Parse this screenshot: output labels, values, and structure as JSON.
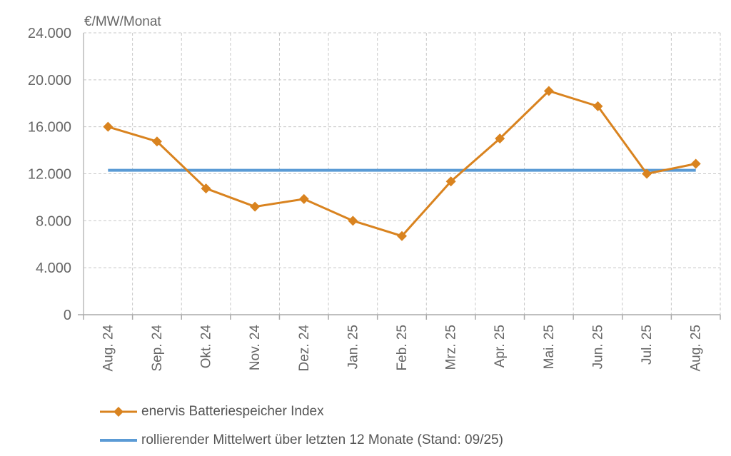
{
  "chart_data": {
    "type": "line",
    "ylabel": "€/MW/Monat",
    "categories": [
      "Aug. 24",
      "Sep. 24",
      "Okt. 24",
      "Nov. 24",
      "Dez. 24",
      "Jan. 25",
      "Feb. 25",
      "Mrz. 25",
      "Apr. 25",
      "Mai. 25",
      "Jun. 25",
      "Jul. 25",
      "Aug. 25"
    ],
    "ylim": [
      0,
      24000
    ],
    "yticks": [
      0,
      4000,
      8000,
      12000,
      16000,
      20000,
      24000
    ],
    "ytick_labels": [
      "0",
      "4.000",
      "8.000",
      "12.000",
      "16.000",
      "20.000",
      "24.000"
    ],
    "grid": true,
    "legend_position": "bottom",
    "series": [
      {
        "name": "enervis Batteriespeicher Index",
        "color": "#D9831F",
        "marker": "diamond",
        "values": [
          16000,
          14750,
          10750,
          9200,
          9850,
          8000,
          6700,
          11350,
          15000,
          19050,
          17750,
          12000,
          12850
        ]
      },
      {
        "name": "rollierender Mittelwert über letzten 12 Monate (Stand: 09/25)",
        "color": "#5B9BD5",
        "marker": "none",
        "values": [
          12300,
          12300,
          12300,
          12300,
          12300,
          12300,
          12300,
          12300,
          12300,
          12300,
          12300,
          12300,
          12300
        ]
      }
    ]
  }
}
